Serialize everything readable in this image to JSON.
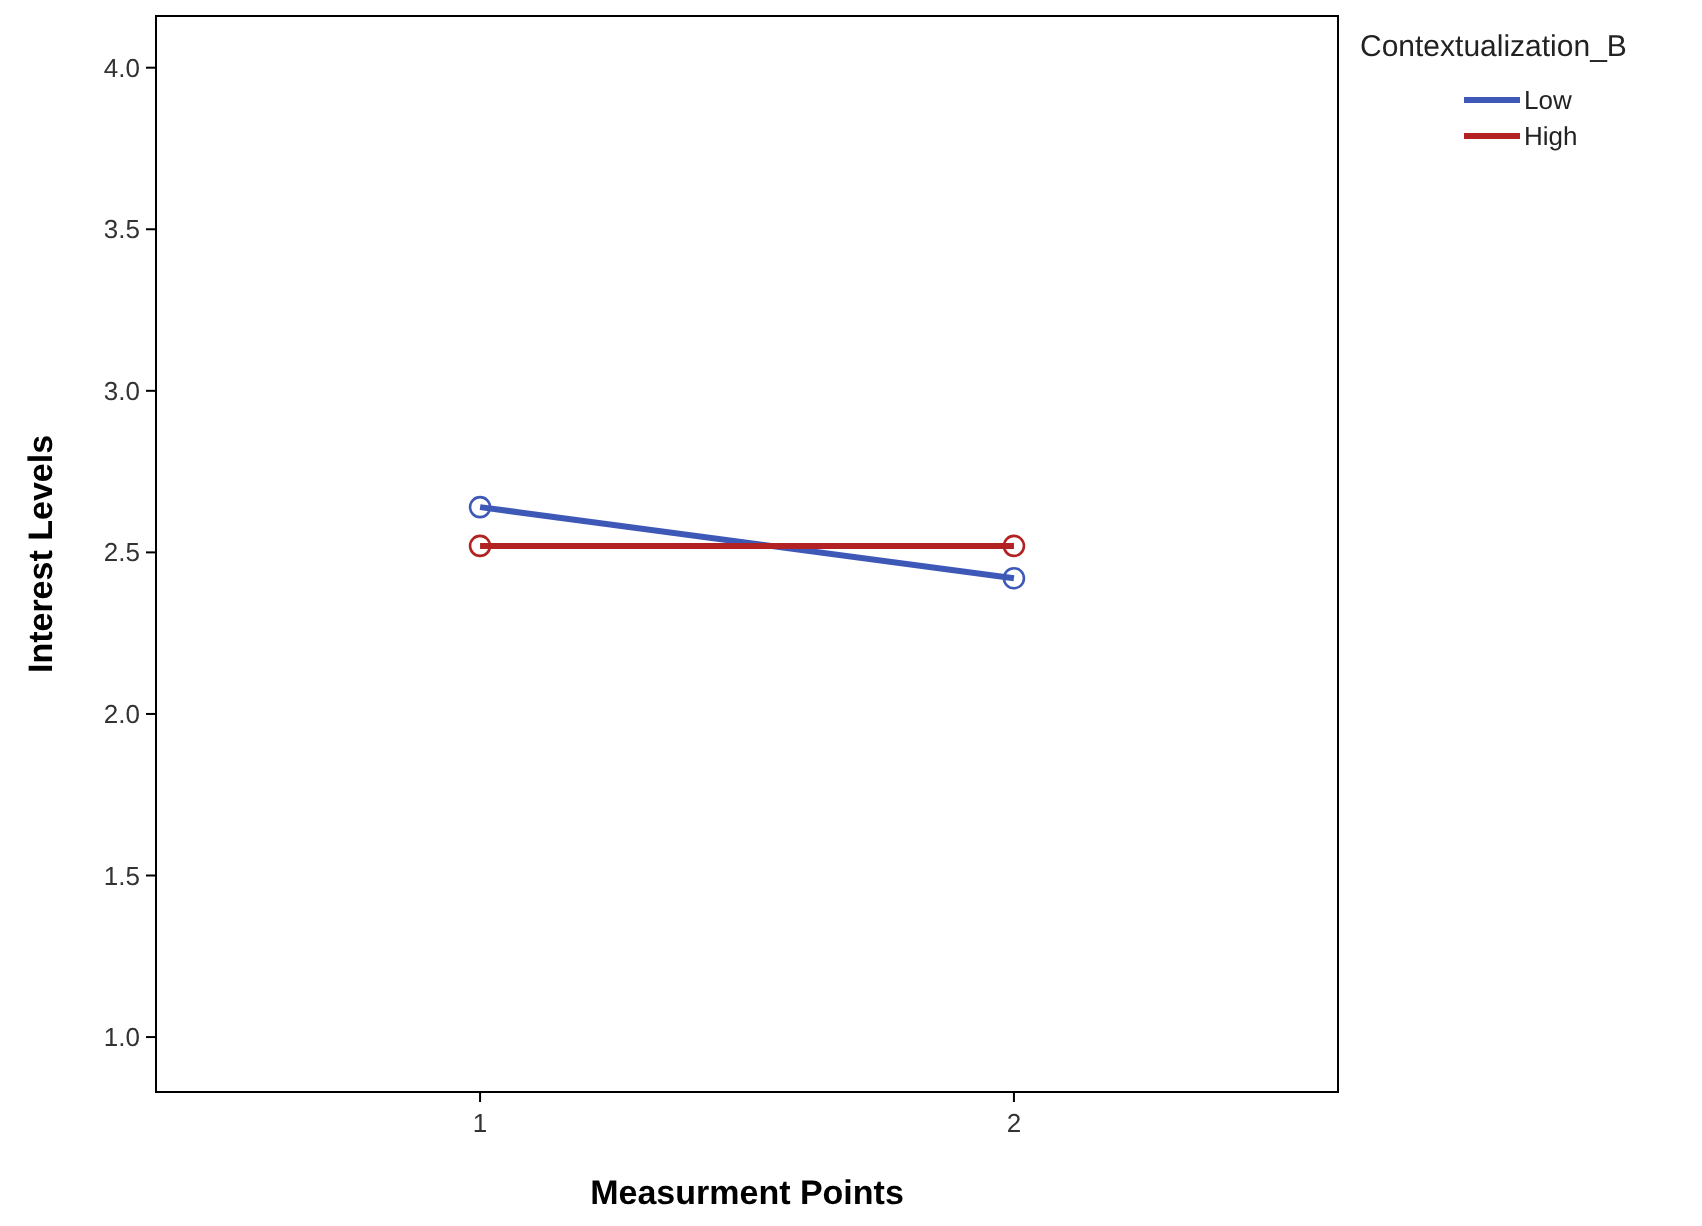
{
  "chart_data": {
    "type": "line",
    "xlabel": "Measurment Points",
    "ylabel": "Interest Levels",
    "legend_title": "Contextualization_B",
    "legend": "top right",
    "marker": "circle",
    "line_style": "solid",
    "grid": false,
    "categories": [
      "1",
      "2"
    ],
    "ylim": [
      0.83,
      4.16
    ],
    "yticks": [
      {
        "value": 1,
        "label": "1.0"
      },
      {
        "value": 1.5,
        "label": "1.5"
      },
      {
        "value": 2,
        "label": "2.0"
      },
      {
        "value": 2.5,
        "label": "2.5"
      },
      {
        "value": 3,
        "label": "3.0"
      },
      {
        "value": 3.5,
        "label": "3.5"
      },
      {
        "value": 4,
        "label": "4.0"
      }
    ],
    "series": [
      {
        "name": "Low",
        "color": "#3e58b8",
        "values": [
          2.64,
          2.42
        ]
      },
      {
        "name": "High",
        "color": "#b22222",
        "values": [
          2.52,
          2.52
        ]
      }
    ]
  }
}
